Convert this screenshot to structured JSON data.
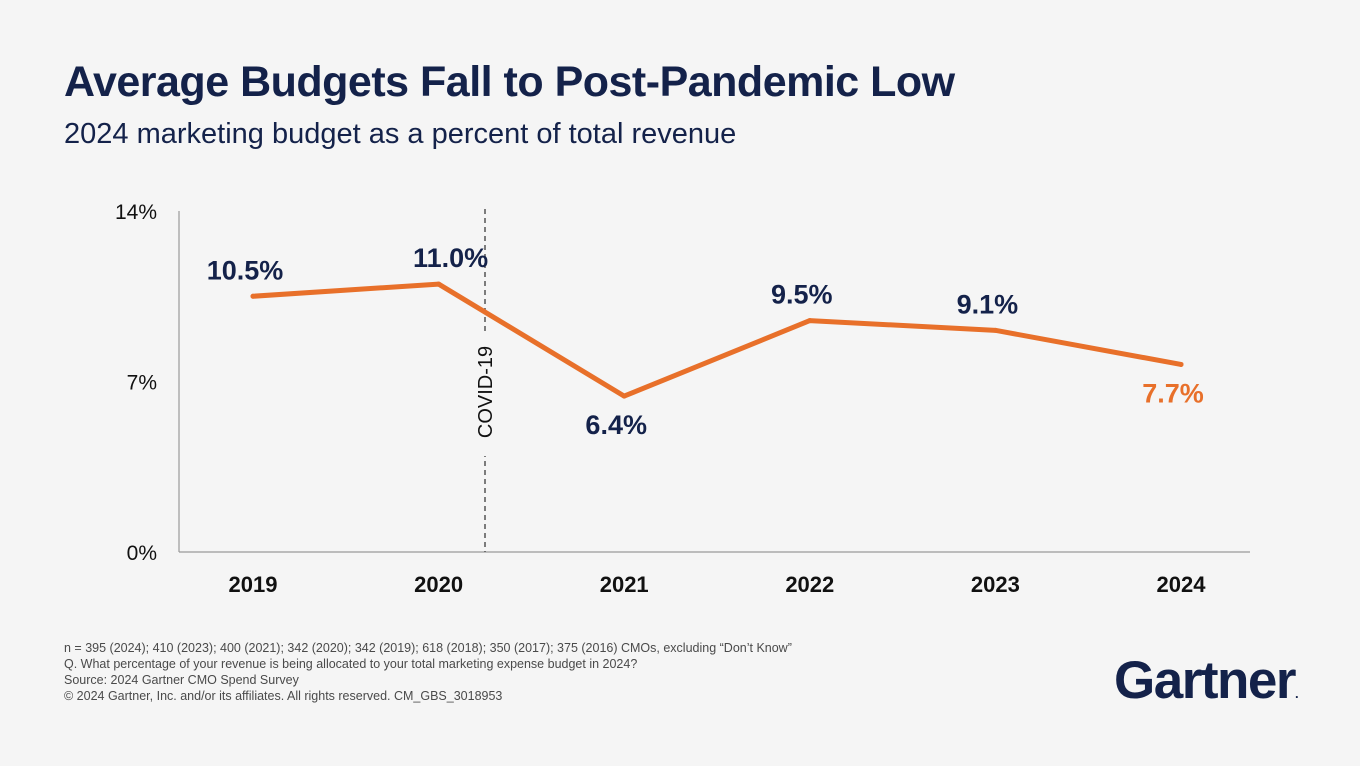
{
  "title": "Average Budgets Fall to Post-Pandemic Low",
  "subtitle": "2024 marketing budget as a percent of total revenue",
  "colors": {
    "navy": "#14224a",
    "orange": "#e8702a",
    "axis": "#9a9a9a",
    "background": "#f5f5f5"
  },
  "chart_data": {
    "type": "line",
    "title": "Average Budgets Fall to Post-Pandemic Low",
    "subtitle": "2024 marketing budget as a percent of total revenue",
    "xlabel": "",
    "ylabel": "",
    "categories": [
      "2019",
      "2020",
      "2021",
      "2022",
      "2023",
      "2024"
    ],
    "values": [
      10.5,
      11.0,
      6.4,
      9.5,
      9.1,
      7.7
    ],
    "data_labels": [
      "10.5%",
      "11.0%",
      "6.4%",
      "9.5%",
      "9.1%",
      "7.7%"
    ],
    "highlight_index": 5,
    "ylim": [
      0,
      14
    ],
    "y_ticks": [
      0,
      7,
      14
    ],
    "y_tick_labels": [
      "0%",
      "7%",
      "14%"
    ],
    "grid": false,
    "annotation": {
      "label": "COVID-19",
      "position_between": [
        "2020",
        "2021"
      ],
      "style": "dashed vertical line"
    }
  },
  "footnotes": [
    "n = 395 (2024); 410 (2023); 400 (2021); 342 (2020); 342 (2019); 618 (2018); 350 (2017); 375 (2016) CMOs, excluding “Don’t Know”",
    "Q. What percentage of your revenue is being allocated to your total marketing expense budget in 2024?",
    "Source: 2024 Gartner CMO Spend Survey",
    "© 2024 Gartner, Inc. and/or its affiliates. All rights reserved. CM_GBS_3018953"
  ],
  "logo": {
    "text": "Gartner",
    "dot": "."
  }
}
